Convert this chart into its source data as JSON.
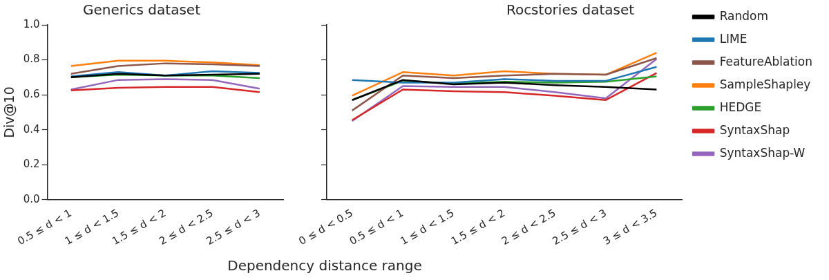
{
  "chart_data": [
    {
      "type": "line",
      "title": "Generics dataset",
      "xlabel": "Dependency distance range",
      "ylabel": "Div@10",
      "categories": [
        "0.5 ≤ d < 1",
        "1 ≤ d < 1.5",
        "1.5 ≤ d < 2",
        "2 ≤ d < 2.5",
        "2.5 ≤ d < 3"
      ],
      "ylim": [
        0,
        1
      ],
      "yticks": [
        {
          "value": 0,
          "label": "0.0"
        },
        {
          "value": 0.2,
          "label": "0.2"
        },
        {
          "value": 0.4,
          "label": "0.4"
        },
        {
          "value": 0.6,
          "label": "0.6"
        },
        {
          "value": 0.8,
          "label": "0.8"
        },
        {
          "value": 1,
          "label": "1.0"
        }
      ],
      "grid": false,
      "legend": false,
      "series": [
        {
          "color": "#000000",
          "values": [
            0.7,
            0.72,
            0.71,
            0.715,
            0.72
          ]
        },
        {
          "color": "#1f77b4",
          "values": [
            0.705,
            0.73,
            0.71,
            0.735,
            0.725
          ]
        },
        {
          "color": "#8c564b",
          "values": [
            0.72,
            0.765,
            0.78,
            0.775,
            0.765
          ]
        },
        {
          "color": "#ff7f0e",
          "values": [
            0.765,
            0.795,
            0.795,
            0.785,
            0.77
          ]
        },
        {
          "color": "#2ca02c",
          "values": [
            0.7,
            0.715,
            0.71,
            0.71,
            0.695
          ]
        },
        {
          "color": "#d62728",
          "values": [
            0.625,
            0.64,
            0.645,
            0.645,
            0.615
          ]
        },
        {
          "color": "#9467bd",
          "values": [
            0.63,
            0.685,
            0.69,
            0.685,
            0.635
          ]
        }
      ]
    },
    {
      "type": "line",
      "title": "Rocstories dataset",
      "categories": [
        "0 ≤ d < 0.5",
        "0.5 ≤ d < 1",
        "1 ≤ d < 1.5",
        "1.5 ≤ d < 2",
        "2 ≤ d < 2.5",
        "2.5 ≤ d < 3",
        "3 ≤ d < 3.5"
      ],
      "ylim": [
        0,
        1
      ],
      "yticks": [
        0,
        0.2,
        0.4,
        0.6,
        0.8,
        1
      ],
      "tick_labels": "x",
      "grid": false,
      "legend": "top right",
      "series": [
        {
          "name": "Random",
          "color": "#000000",
          "values": [
            0.57,
            0.685,
            0.66,
            0.67,
            0.655,
            0.645,
            0.63
          ]
        },
        {
          "name": "LIME",
          "color": "#1f77b4",
          "values": [
            0.685,
            0.67,
            0.67,
            0.69,
            0.68,
            0.68,
            0.76
          ]
        },
        {
          "name": "FeatureAblation",
          "color": "#8c564b",
          "values": [
            0.51,
            0.71,
            0.695,
            0.71,
            0.72,
            0.715,
            0.81
          ]
        },
        {
          "name": "SampleShapley",
          "color": "#ff7f0e",
          "values": [
            0.595,
            0.73,
            0.71,
            0.735,
            0.72,
            0.715,
            0.84
          ]
        },
        {
          "name": "HEDGE",
          "color": "#2ca02c",
          "values": [
            0.57,
            0.68,
            0.665,
            0.675,
            0.67,
            0.675,
            0.705
          ]
        },
        {
          "name": "SyntaxShap",
          "color": "#d62728",
          "values": [
            0.455,
            0.63,
            0.62,
            0.615,
            0.595,
            0.57,
            0.725
          ]
        },
        {
          "name": "SyntaxShap-W",
          "color": "#9467bd",
          "values": [
            0.45,
            0.65,
            0.645,
            0.645,
            0.615,
            0.58,
            0.805
          ]
        }
      ]
    }
  ]
}
